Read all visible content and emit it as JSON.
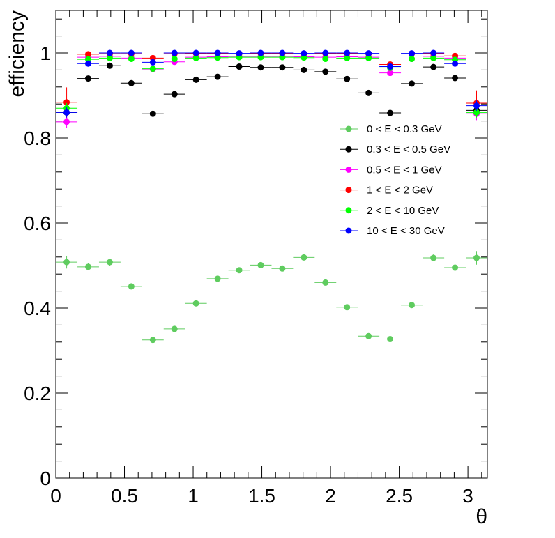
{
  "chart_data": {
    "type": "scatter",
    "title": "",
    "xlabel": "θ",
    "ylabel": "efficiency",
    "xlim": [
      0,
      3.1416
    ],
    "ylim": [
      0,
      1.1
    ],
    "grid": false,
    "legend_position": "right-middle",
    "x_ticks": [
      0,
      0.5,
      1,
      1.5,
      2,
      2.5,
      3
    ],
    "x_tick_labels": [
      "0",
      "0.5",
      "1",
      "1.5",
      "2",
      "2.5",
      "3"
    ],
    "y_ticks": [
      0,
      0.2,
      0.4,
      0.6,
      0.8,
      1
    ],
    "y_tick_labels": [
      "0",
      "0.2",
      "0.4",
      "0.6",
      "0.8",
      "1"
    ],
    "x": [
      0.079,
      0.236,
      0.393,
      0.55,
      0.707,
      0.864,
      1.021,
      1.178,
      1.335,
      1.492,
      1.649,
      1.806,
      1.963,
      2.12,
      2.277,
      2.434,
      2.591,
      2.749,
      2.906,
      3.063
    ],
    "x_half_width": 0.0785,
    "series": [
      {
        "name": "0 < E < 0.3 GeV",
        "color": "#5fcc5f",
        "values": [
          0.508,
          0.497,
          0.508,
          0.451,
          0.325,
          0.351,
          0.411,
          0.469,
          0.489,
          0.501,
          0.493,
          0.519,
          0.46,
          0.402,
          0.334,
          0.327,
          0.407,
          0.518,
          0.495,
          0.518
        ],
        "errors": [
          0.015,
          0.008,
          0.008,
          0.007,
          0.006,
          0.006,
          0.006,
          0.006,
          0.006,
          0.006,
          0.006,
          0.006,
          0.006,
          0.006,
          0.006,
          0.006,
          0.007,
          0.008,
          0.008,
          0.016
        ]
      },
      {
        "name": "0.3 < E < 0.5 GeV",
        "color": "#000000",
        "values": [
          0.86,
          0.94,
          0.97,
          0.929,
          0.857,
          0.903,
          0.937,
          0.944,
          0.968,
          0.966,
          0.966,
          0.96,
          0.956,
          0.939,
          0.906,
          0.859,
          0.928,
          0.967,
          0.941,
          0.865
        ],
        "errors": [
          0.015,
          0.004,
          0.003,
          0.003,
          0.003,
          0.003,
          0.003,
          0.003,
          0.002,
          0.002,
          0.002,
          0.002,
          0.003,
          0.003,
          0.003,
          0.003,
          0.003,
          0.003,
          0.004,
          0.015
        ]
      },
      {
        "name": "0.5 < E < 1 GeV",
        "color": "#ff00ff",
        "values": [
          0.838,
          0.99,
          0.992,
          0.988,
          0.962,
          0.979,
          0.99,
          0.991,
          0.992,
          0.992,
          0.992,
          0.991,
          0.99,
          0.991,
          0.99,
          0.953,
          0.986,
          0.992,
          0.988,
          0.857
        ],
        "errors": [
          0.015,
          0.003,
          0.002,
          0.002,
          0.002,
          0.002,
          0.002,
          0.002,
          0.002,
          0.002,
          0.002,
          0.002,
          0.002,
          0.002,
          0.002,
          0.002,
          0.002,
          0.002,
          0.003,
          0.015
        ]
      },
      {
        "name": "1 < E < 2 GeV",
        "color": "#ff0000",
        "values": [
          0.884,
          0.997,
          0.998,
          0.998,
          0.988,
          0.998,
          0.999,
          0.999,
          0.998,
          0.999,
          0.999,
          0.998,
          0.999,
          0.999,
          0.998,
          0.973,
          0.998,
          0.999,
          0.993,
          0.882
        ],
        "errors": [
          0.035,
          0.002,
          0.001,
          0.001,
          0.002,
          0.001,
          0.001,
          0.001,
          0.001,
          0.001,
          0.001,
          0.001,
          0.001,
          0.001,
          0.001,
          0.002,
          0.001,
          0.001,
          0.002,
          0.03
        ]
      },
      {
        "name": "2 < E < 10 GeV",
        "color": "#00ff00",
        "values": [
          0.87,
          0.985,
          0.988,
          0.986,
          0.963,
          0.986,
          0.988,
          0.989,
          0.99,
          0.99,
          0.99,
          0.989,
          0.986,
          0.988,
          0.988,
          0.965,
          0.986,
          0.988,
          0.984,
          0.86
        ],
        "errors": [
          0.012,
          0.002,
          0.002,
          0.002,
          0.002,
          0.002,
          0.002,
          0.002,
          0.002,
          0.002,
          0.002,
          0.002,
          0.002,
          0.002,
          0.002,
          0.002,
          0.002,
          0.002,
          0.002,
          0.012
        ]
      },
      {
        "name": "10 < E < 30 GeV",
        "color": "#0000ff",
        "values": [
          0.86,
          0.975,
          1.0,
          1.0,
          0.978,
          1.0,
          1.0,
          1.0,
          0.999,
          1.0,
          1.0,
          0.999,
          1.0,
          1.0,
          0.999,
          0.968,
          0.999,
          1.0,
          0.975,
          0.876
        ],
        "errors": [
          0.012,
          0.002,
          0.001,
          0.001,
          0.002,
          0.001,
          0.001,
          0.001,
          0.001,
          0.001,
          0.001,
          0.001,
          0.001,
          0.001,
          0.001,
          0.002,
          0.001,
          0.001,
          0.002,
          0.012
        ]
      }
    ]
  }
}
